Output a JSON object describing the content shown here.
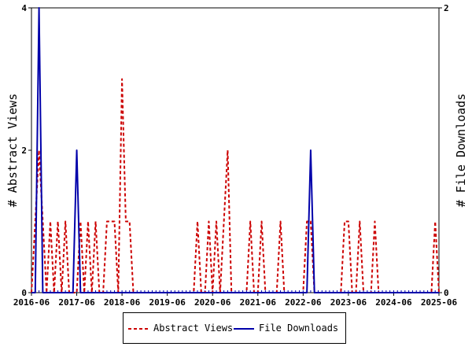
{
  "chart_data": {
    "type": "line",
    "x_ticks": [
      "2016-06",
      "2017-06",
      "2018-06",
      "2019-06",
      "2020-06",
      "2021-06",
      "2022-06",
      "2023-06",
      "2024-06",
      "2025-06"
    ],
    "x_range": [
      "2016-06",
      "2025-06"
    ],
    "ylabel_left": "# Abstract Views",
    "ylabel_right": "# File Downloads",
    "ylim_left": [
      0,
      4
    ],
    "ylim_right": [
      0,
      2
    ],
    "y_ticks_left": [
      "0",
      "2",
      "4"
    ],
    "y_ticks_right": [
      "0",
      "2"
    ],
    "grid": false,
    "legend_position": "bottom",
    "series": [
      {
        "name": "Abstract Views",
        "axis": "left",
        "color": "#cc0000",
        "style": "dashed",
        "points": [
          [
            "2016-06",
            0
          ],
          [
            "2016-07",
            1
          ],
          [
            "2016-08",
            2
          ],
          [
            "2016-09",
            1
          ],
          [
            "2016-10",
            0
          ],
          [
            "2016-11",
            1
          ],
          [
            "2016-12",
            0
          ],
          [
            "2017-01",
            1
          ],
          [
            "2017-02",
            0
          ],
          [
            "2017-03",
            1
          ],
          [
            "2017-04",
            0
          ],
          [
            "2017-05",
            0
          ],
          [
            "2017-06",
            0
          ],
          [
            "2017-07",
            1
          ],
          [
            "2017-08",
            0
          ],
          [
            "2017-09",
            1
          ],
          [
            "2017-10",
            0
          ],
          [
            "2017-11",
            1
          ],
          [
            "2017-12",
            0
          ],
          [
            "2018-01",
            0
          ],
          [
            "2018-02",
            1
          ],
          [
            "2018-03",
            1
          ],
          [
            "2018-04",
            1
          ],
          [
            "2018-05",
            0
          ],
          [
            "2018-06",
            3
          ],
          [
            "2018-07",
            1
          ],
          [
            "2018-08",
            1
          ],
          [
            "2018-09",
            0
          ],
          [
            "2018-10",
            0
          ],
          [
            "2018-11",
            0
          ],
          [
            "2018-12",
            0
          ],
          [
            "2019-01",
            0
          ],
          [
            "2019-02",
            0
          ],
          [
            "2019-03",
            0
          ],
          [
            "2019-04",
            0
          ],
          [
            "2019-05",
            0
          ],
          [
            "2019-06",
            0
          ],
          [
            "2019-07",
            0
          ],
          [
            "2019-08",
            0
          ],
          [
            "2019-09",
            0
          ],
          [
            "2019-10",
            0
          ],
          [
            "2019-11",
            0
          ],
          [
            "2019-12",
            0
          ],
          [
            "2020-01",
            0
          ],
          [
            "2020-02",
            1
          ],
          [
            "2020-03",
            0
          ],
          [
            "2020-04",
            0
          ],
          [
            "2020-05",
            1
          ],
          [
            "2020-06",
            0
          ],
          [
            "2020-07",
            1
          ],
          [
            "2020-08",
            0
          ],
          [
            "2020-09",
            1
          ],
          [
            "2020-10",
            2
          ],
          [
            "2020-11",
            0
          ],
          [
            "2020-12",
            0
          ],
          [
            "2021-01",
            0
          ],
          [
            "2021-02",
            0
          ],
          [
            "2021-03",
            0
          ],
          [
            "2021-04",
            1
          ],
          [
            "2021-05",
            0
          ],
          [
            "2021-06",
            0
          ],
          [
            "2021-07",
            1
          ],
          [
            "2021-08",
            0
          ],
          [
            "2021-09",
            0
          ],
          [
            "2021-10",
            0
          ],
          [
            "2021-11",
            0
          ],
          [
            "2021-12",
            1
          ],
          [
            "2022-01",
            0
          ],
          [
            "2022-02",
            0
          ],
          [
            "2022-03",
            0
          ],
          [
            "2022-04",
            0
          ],
          [
            "2022-05",
            0
          ],
          [
            "2022-06",
            0
          ],
          [
            "2022-07",
            1
          ],
          [
            "2022-08",
            1
          ],
          [
            "2022-09",
            0
          ],
          [
            "2022-10",
            0
          ],
          [
            "2022-11",
            0
          ],
          [
            "2022-12",
            0
          ],
          [
            "2023-01",
            0
          ],
          [
            "2023-02",
            0
          ],
          [
            "2023-03",
            0
          ],
          [
            "2023-04",
            0
          ],
          [
            "2023-05",
            1
          ],
          [
            "2023-06",
            1
          ],
          [
            "2023-07",
            0
          ],
          [
            "2023-08",
            0
          ],
          [
            "2023-09",
            1
          ],
          [
            "2023-10",
            0
          ],
          [
            "2023-11",
            0
          ],
          [
            "2023-12",
            0
          ],
          [
            "2024-01",
            1
          ],
          [
            "2024-02",
            0
          ],
          [
            "2024-03",
            0
          ],
          [
            "2024-04",
            0
          ],
          [
            "2024-05",
            0
          ],
          [
            "2024-06",
            0
          ],
          [
            "2024-07",
            0
          ],
          [
            "2024-08",
            0
          ],
          [
            "2024-09",
            0
          ],
          [
            "2024-10",
            0
          ],
          [
            "2024-11",
            0
          ],
          [
            "2024-12",
            0
          ],
          [
            "2025-01",
            0
          ],
          [
            "2025-02",
            0
          ],
          [
            "2025-03",
            0
          ],
          [
            "2025-04",
            0
          ],
          [
            "2025-05",
            1
          ],
          [
            "2025-06",
            0
          ]
        ]
      },
      {
        "name": "File Downloads",
        "axis": "right",
        "color": "#0000aa",
        "style": "solid",
        "points": [
          [
            "2016-06",
            0
          ],
          [
            "2016-07",
            0
          ],
          [
            "2016-08",
            2
          ],
          [
            "2016-09",
            0
          ],
          [
            "2016-10",
            0
          ],
          [
            "2016-11",
            0
          ],
          [
            "2016-12",
            0
          ],
          [
            "2017-01",
            0
          ],
          [
            "2017-02",
            0
          ],
          [
            "2017-03",
            0
          ],
          [
            "2017-04",
            0
          ],
          [
            "2017-05",
            0
          ],
          [
            "2017-06",
            1
          ],
          [
            "2017-07",
            0
          ],
          [
            "2017-08",
            0
          ],
          [
            "2017-09",
            0
          ],
          [
            "2017-10",
            0
          ],
          [
            "2017-11",
            0
          ],
          [
            "2017-12",
            0
          ],
          [
            "2018-01",
            0
          ],
          [
            "2018-02",
            0
          ],
          [
            "2018-03",
            0
          ],
          [
            "2018-04",
            0
          ],
          [
            "2018-05",
            0
          ],
          [
            "2018-06",
            0
          ],
          [
            "2018-07",
            0
          ],
          [
            "2018-08",
            0
          ],
          [
            "2018-09",
            0
          ],
          [
            "2018-10",
            0
          ],
          [
            "2018-11",
            0
          ],
          [
            "2018-12",
            0
          ],
          [
            "2019-01",
            0
          ],
          [
            "2019-02",
            0
          ],
          [
            "2019-03",
            0
          ],
          [
            "2019-04",
            0
          ],
          [
            "2019-05",
            0
          ],
          [
            "2019-06",
            0
          ],
          [
            "2019-07",
            0
          ],
          [
            "2019-08",
            0
          ],
          [
            "2019-09",
            0
          ],
          [
            "2019-10",
            0
          ],
          [
            "2019-11",
            0
          ],
          [
            "2019-12",
            0
          ],
          [
            "2020-01",
            0
          ],
          [
            "2020-02",
            0
          ],
          [
            "2020-03",
            0
          ],
          [
            "2020-04",
            0
          ],
          [
            "2020-05",
            0
          ],
          [
            "2020-06",
            0
          ],
          [
            "2020-07",
            0
          ],
          [
            "2020-08",
            0
          ],
          [
            "2020-09",
            0
          ],
          [
            "2020-10",
            0
          ],
          [
            "2020-11",
            0
          ],
          [
            "2020-12",
            0
          ],
          [
            "2021-01",
            0
          ],
          [
            "2021-02",
            0
          ],
          [
            "2021-03",
            0
          ],
          [
            "2021-04",
            0
          ],
          [
            "2021-05",
            0
          ],
          [
            "2021-06",
            0
          ],
          [
            "2021-07",
            0
          ],
          [
            "2021-08",
            0
          ],
          [
            "2021-09",
            0
          ],
          [
            "2021-10",
            0
          ],
          [
            "2021-11",
            0
          ],
          [
            "2021-12",
            0
          ],
          [
            "2022-01",
            0
          ],
          [
            "2022-02",
            0
          ],
          [
            "2022-03",
            0
          ],
          [
            "2022-04",
            0
          ],
          [
            "2022-05",
            0
          ],
          [
            "2022-06",
            0
          ],
          [
            "2022-07",
            0
          ],
          [
            "2022-08",
            1
          ],
          [
            "2022-09",
            0
          ],
          [
            "2022-10",
            0
          ],
          [
            "2022-11",
            0
          ],
          [
            "2022-12",
            0
          ],
          [
            "2023-01",
            0
          ],
          [
            "2023-02",
            0
          ],
          [
            "2023-03",
            0
          ],
          [
            "2023-04",
            0
          ],
          [
            "2023-05",
            0
          ],
          [
            "2023-06",
            0
          ],
          [
            "2023-07",
            0
          ],
          [
            "2023-08",
            0
          ],
          [
            "2023-09",
            0
          ],
          [
            "2023-10",
            0
          ],
          [
            "2023-11",
            0
          ],
          [
            "2023-12",
            0
          ],
          [
            "2024-01",
            0
          ],
          [
            "2024-02",
            0
          ],
          [
            "2024-03",
            0
          ],
          [
            "2024-04",
            0
          ],
          [
            "2024-05",
            0
          ],
          [
            "2024-06",
            0
          ],
          [
            "2024-07",
            0
          ],
          [
            "2024-08",
            0
          ],
          [
            "2024-09",
            0
          ],
          [
            "2024-10",
            0
          ],
          [
            "2024-11",
            0
          ],
          [
            "2024-12",
            0
          ],
          [
            "2025-01",
            0
          ],
          [
            "2025-02",
            0
          ],
          [
            "2025-03",
            0
          ],
          [
            "2025-04",
            0
          ],
          [
            "2025-05",
            0
          ],
          [
            "2025-06",
            0
          ]
        ]
      }
    ]
  },
  "legend": {
    "abstract_label": "Abstract Views",
    "downloads_label": "File Downloads"
  }
}
